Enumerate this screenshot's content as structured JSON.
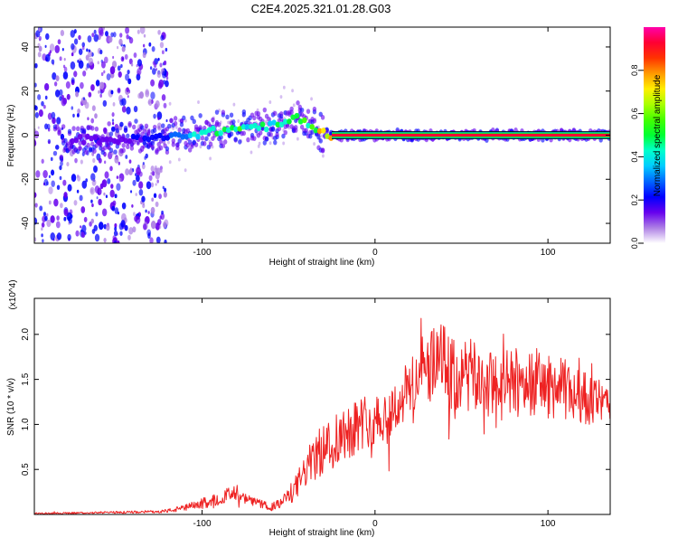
{
  "figure_title": "C2E4.2025.321.01.28.G03",
  "chart_data": [
    {
      "type": "heatmap",
      "title": "C2E4.2025.321.01.28.G03",
      "xlabel": "Height of straight line (km)",
      "ylabel": "Frequency (Hz)",
      "xlim": [
        -197,
        136
      ],
      "ylim": [
        -49,
        49
      ],
      "x_ticks": [
        -100,
        0,
        100
      ],
      "y_ticks": [
        -40,
        -20,
        0,
        20,
        40
      ],
      "colorbar": {
        "label": "Normalized spectral amplitude",
        "range": [
          0.0,
          1.0
        ],
        "ticks": [
          "0.0",
          "0.2",
          "0.4",
          "0.6",
          "0.8"
        ],
        "colors": [
          "#ffffff",
          "#ad7fe5",
          "#6600ee",
          "#0000ff",
          "#0066ff",
          "#00ccff",
          "#00ffcc",
          "#00ff33",
          "#44ff00",
          "#aaff00",
          "#ffee00",
          "#ff9900",
          "#ff3300",
          "#ff0033",
          "#ff00aa"
        ]
      },
      "ridge": {
        "description": "frequency of peak spectral amplitude along height",
        "x": [
          -170,
          -140,
          -120,
          -110,
          -100,
          -90,
          -80,
          -70,
          -60,
          -50,
          -45,
          -40,
          -35,
          -30,
          -25,
          -20,
          -10,
          0,
          10,
          20,
          50,
          100,
          136
        ],
        "frequency": [
          -2,
          -2,
          -1,
          0,
          1,
          2,
          3,
          4,
          4,
          6,
          8,
          6,
          3,
          1,
          0,
          0,
          0,
          0,
          0,
          0,
          0,
          0,
          0
        ],
        "amplitude": [
          0.15,
          0.2,
          0.3,
          0.4,
          0.5,
          0.55,
          0.55,
          0.5,
          0.5,
          0.55,
          0.6,
          0.6,
          0.7,
          0.85,
          0.9,
          0.95,
          0.95,
          0.95,
          0.95,
          0.95,
          0.95,
          0.95,
          0.95
        ]
      },
      "scatter_region": {
        "description": "diffuse low-amplitude scatter across all frequencies",
        "x_range": [
          -197,
          -120
        ],
        "frequency_range": [
          -49,
          49
        ],
        "amplitude_range": [
          0.05,
          0.25
        ]
      }
    },
    {
      "type": "line",
      "xlabel": "Height of straight line (km)",
      "ylabel": "SNR (10 * v/v)",
      "y_multiplier": "(x10^4)",
      "xlim": [
        -197,
        136
      ],
      "ylim": [
        0,
        2.4
      ],
      "x_ticks": [
        -100,
        0,
        100
      ],
      "y_ticks": [
        0.5,
        1.0,
        1.5,
        2.0
      ],
      "series": [
        {
          "name": "SNR",
          "color": "#ee2222",
          "x": [
            -197,
            -160,
            -130,
            -120,
            -110,
            -100,
            -90,
            -85,
            -80,
            -70,
            -60,
            -55,
            -50,
            -45,
            -40,
            -35,
            -30,
            -25,
            -20,
            -15,
            -10,
            -5,
            0,
            10,
            20,
            25,
            30,
            40,
            45,
            50,
            60,
            70,
            80,
            90,
            100,
            110,
            120,
            130,
            136
          ],
          "values": [
            0.01,
            0.02,
            0.03,
            0.04,
            0.07,
            0.12,
            0.18,
            0.22,
            0.2,
            0.14,
            0.08,
            0.12,
            0.2,
            0.32,
            0.5,
            0.62,
            0.72,
            0.8,
            0.88,
            0.95,
            1.0,
            1.05,
            1.05,
            1.15,
            1.4,
            1.55,
            1.62,
            1.7,
            1.45,
            1.55,
            1.5,
            1.4,
            1.45,
            1.5,
            1.42,
            1.38,
            1.3,
            1.25,
            1.2
          ],
          "noise_amplitude": [
            0.01,
            0.01,
            0.015,
            0.02,
            0.04,
            0.06,
            0.07,
            0.08,
            0.07,
            0.05,
            0.04,
            0.06,
            0.1,
            0.15,
            0.2,
            0.25,
            0.3,
            0.3,
            0.35,
            0.35,
            0.3,
            0.3,
            0.3,
            0.3,
            0.35,
            0.4,
            0.4,
            0.45,
            0.5,
            0.45,
            0.4,
            0.4,
            0.4,
            0.4,
            0.35,
            0.35,
            0.3,
            0.25,
            0.2
          ]
        }
      ]
    }
  ]
}
